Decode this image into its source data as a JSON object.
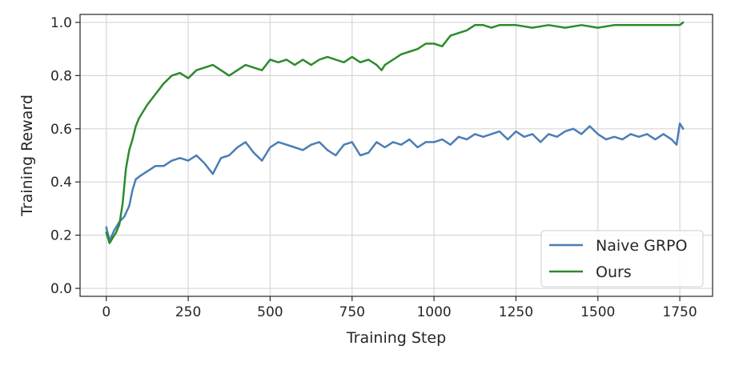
{
  "chart_data": {
    "type": "line",
    "title": "",
    "xlabel": "Training Step",
    "ylabel": "Training Reward",
    "xlim": [
      -80,
      1850
    ],
    "ylim": [
      -0.03,
      1.03
    ],
    "xticks": [
      0,
      250,
      500,
      750,
      1000,
      1250,
      1500,
      1750
    ],
    "yticks": [
      0.0,
      0.2,
      0.4,
      0.6,
      0.8,
      1.0
    ],
    "xtick_labels": [
      "0",
      "250",
      "500",
      "750",
      "1000",
      "1250",
      "1500",
      "1750"
    ],
    "ytick_labels": [
      "0.0",
      "0.2",
      "0.4",
      "0.6",
      "0.8",
      "1.0"
    ],
    "grid": true,
    "legend_position": "bottom-right",
    "series": [
      {
        "name": "Naive GRPO",
        "color": "#4a7eb4",
        "x": [
          0,
          10,
          25,
          40,
          55,
          70,
          80,
          90,
          100,
          125,
          150,
          175,
          200,
          225,
          250,
          275,
          300,
          325,
          350,
          375,
          400,
          425,
          450,
          475,
          500,
          525,
          550,
          575,
          600,
          625,
          650,
          675,
          700,
          725,
          750,
          775,
          800,
          825,
          850,
          875,
          900,
          925,
          950,
          975,
          1000,
          1025,
          1050,
          1075,
          1100,
          1125,
          1150,
          1175,
          1200,
          1225,
          1250,
          1275,
          1300,
          1325,
          1350,
          1375,
          1400,
          1425,
          1450,
          1475,
          1500,
          1525,
          1550,
          1575,
          1600,
          1625,
          1650,
          1675,
          1700,
          1725,
          1740,
          1750,
          1760
        ],
        "y": [
          0.23,
          0.18,
          0.22,
          0.25,
          0.27,
          0.31,
          0.37,
          0.41,
          0.42,
          0.44,
          0.46,
          0.46,
          0.48,
          0.49,
          0.48,
          0.5,
          0.47,
          0.43,
          0.49,
          0.5,
          0.53,
          0.55,
          0.51,
          0.48,
          0.53,
          0.55,
          0.54,
          0.53,
          0.52,
          0.54,
          0.55,
          0.52,
          0.5,
          0.54,
          0.55,
          0.5,
          0.51,
          0.55,
          0.53,
          0.55,
          0.54,
          0.56,
          0.53,
          0.55,
          0.55,
          0.56,
          0.54,
          0.57,
          0.56,
          0.58,
          0.57,
          0.58,
          0.59,
          0.56,
          0.59,
          0.57,
          0.58,
          0.55,
          0.58,
          0.57,
          0.59,
          0.6,
          0.58,
          0.61,
          0.58,
          0.56,
          0.57,
          0.56,
          0.58,
          0.57,
          0.58,
          0.56,
          0.58,
          0.56,
          0.54,
          0.62,
          0.6
        ]
      },
      {
        "name": "Ours",
        "color": "#2d8a2d",
        "x": [
          0,
          10,
          20,
          30,
          40,
          50,
          60,
          70,
          80,
          90,
          100,
          125,
          150,
          175,
          200,
          225,
          250,
          275,
          300,
          325,
          350,
          375,
          400,
          425,
          450,
          475,
          500,
          525,
          550,
          575,
          600,
          625,
          650,
          675,
          700,
          725,
          750,
          775,
          800,
          825,
          840,
          850,
          875,
          900,
          925,
          950,
          975,
          1000,
          1025,
          1050,
          1075,
          1100,
          1125,
          1150,
          1175,
          1200,
          1250,
          1300,
          1350,
          1400,
          1450,
          1500,
          1550,
          1600,
          1650,
          1700,
          1750,
          1760
        ],
        "y": [
          0.21,
          0.17,
          0.19,
          0.21,
          0.24,
          0.32,
          0.45,
          0.52,
          0.56,
          0.61,
          0.64,
          0.69,
          0.73,
          0.77,
          0.8,
          0.81,
          0.79,
          0.82,
          0.83,
          0.84,
          0.82,
          0.8,
          0.82,
          0.84,
          0.83,
          0.82,
          0.86,
          0.85,
          0.86,
          0.84,
          0.86,
          0.84,
          0.86,
          0.87,
          0.86,
          0.85,
          0.87,
          0.85,
          0.86,
          0.84,
          0.82,
          0.84,
          0.86,
          0.88,
          0.89,
          0.9,
          0.92,
          0.92,
          0.91,
          0.95,
          0.96,
          0.97,
          0.99,
          0.99,
          0.98,
          0.99,
          0.99,
          0.98,
          0.99,
          0.98,
          0.99,
          0.98,
          0.99,
          0.99,
          0.99,
          0.99,
          0.99,
          1.0
        ]
      }
    ]
  }
}
